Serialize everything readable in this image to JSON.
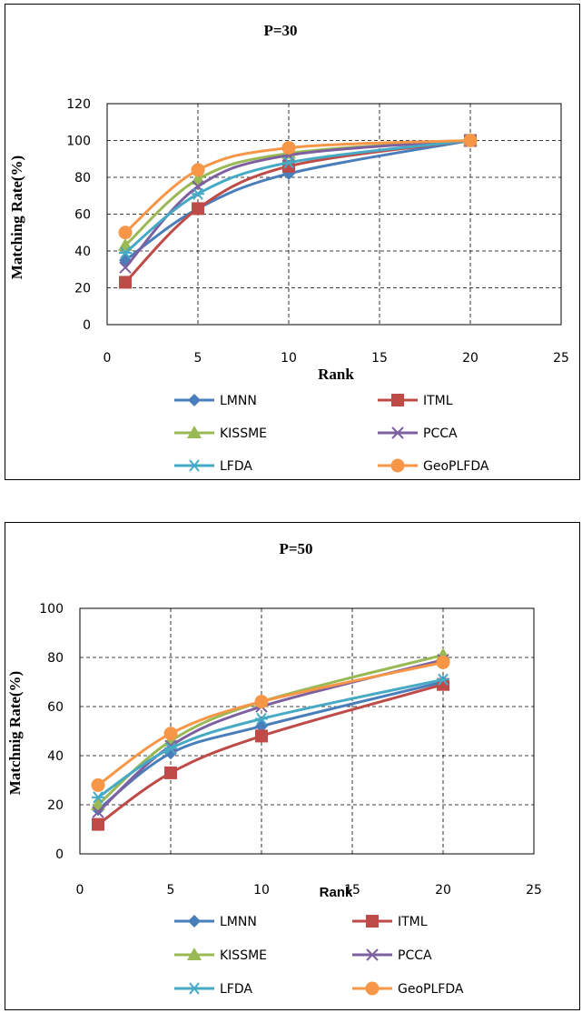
{
  "chart_data": [
    {
      "type": "line",
      "title": "P=30",
      "xlabel": "Rank",
      "ylabel": "Matching Rate(%)",
      "xlim": [
        0,
        25
      ],
      "ylim": [
        0,
        120
      ],
      "xticks": [
        0,
        5,
        10,
        15,
        20,
        25
      ],
      "yticks": [
        0,
        20,
        40,
        60,
        80,
        100,
        120
      ],
      "grid": true,
      "legend_position": "bottom",
      "x": [
        1,
        5,
        10,
        20
      ],
      "series": [
        {
          "name": "LMNN",
          "marker": "diamond",
          "color": "#4a7ebb",
          "values": [
            35,
            63,
            82,
            100
          ]
        },
        {
          "name": "ITML",
          "marker": "square",
          "color": "#be4b48",
          "values": [
            23,
            63,
            86,
            100
          ]
        },
        {
          "name": "KISSME",
          "marker": "triangle",
          "color": "#98b954",
          "values": [
            43,
            79,
            93,
            100
          ]
        },
        {
          "name": "PCCA",
          "marker": "x",
          "color": "#7d60a0",
          "values": [
            31,
            75,
            92,
            100
          ]
        },
        {
          "name": "LFDA",
          "marker": "star",
          "color": "#46aac5",
          "values": [
            39,
            71,
            88,
            100
          ]
        },
        {
          "name": "GeoPLFDA",
          "marker": "circle",
          "color": "#f79646",
          "values": [
            50,
            84,
            96,
            100
          ]
        }
      ]
    },
    {
      "type": "line",
      "title": "P=50",
      "xlabel": "Rank",
      "ylabel": "Matchnig Rate(%)",
      "xlim": [
        0,
        25
      ],
      "ylim": [
        0,
        100
      ],
      "xticks": [
        0,
        5,
        10,
        15,
        20,
        25
      ],
      "yticks": [
        0,
        20,
        40,
        60,
        80,
        100
      ],
      "grid": true,
      "legend_position": "bottom",
      "x": [
        1,
        5,
        10,
        20
      ],
      "series": [
        {
          "name": "LMNN",
          "marker": "diamond",
          "color": "#4a7ebb",
          "values": [
            18,
            41,
            52,
            70
          ]
        },
        {
          "name": "ITML",
          "marker": "square",
          "color": "#be4b48",
          "values": [
            12,
            33,
            48,
            69
          ]
        },
        {
          "name": "KISSME",
          "marker": "triangle",
          "color": "#98b954",
          "values": [
            20,
            46,
            62,
            81
          ]
        },
        {
          "name": "PCCA",
          "marker": "x",
          "color": "#7d60a0",
          "values": [
            17,
            44,
            60,
            79
          ]
        },
        {
          "name": "LFDA",
          "marker": "star",
          "color": "#46aac5",
          "values": [
            23,
            43,
            55,
            71
          ]
        },
        {
          "name": "GeoPLFDA",
          "marker": "circle",
          "color": "#f79646",
          "values": [
            28,
            49,
            62,
            78
          ]
        }
      ]
    }
  ]
}
